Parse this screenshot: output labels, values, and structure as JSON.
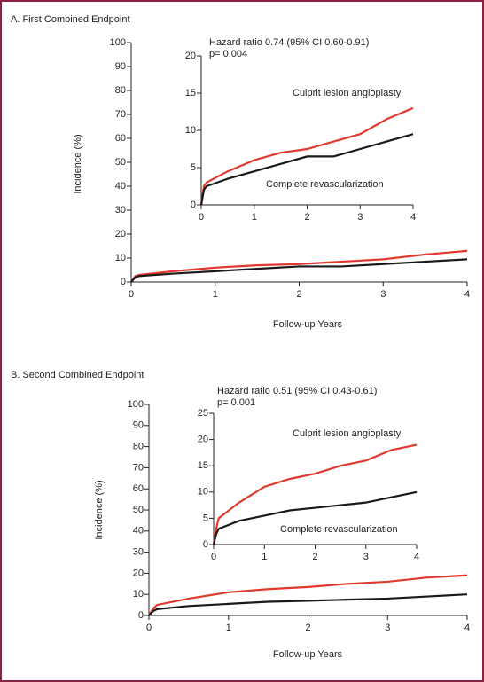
{
  "chart_data": [
    {
      "type": "line",
      "title": "A. First Combined Endpoint",
      "y_label": "Incidence (%)",
      "x_label": "Follow-up Years",
      "x": [
        0,
        0.05,
        0.1,
        0.5,
        1,
        1.5,
        2,
        2.5,
        3,
        3.5,
        4
      ],
      "series": [
        {
          "color": "#e03a2f",
          "values": [
            0,
            2.5,
            3,
            4.5,
            6,
            7,
            7.5,
            8.5,
            9.5,
            11.5,
            13
          ]
        },
        {
          "color": "#1a1a1a",
          "values": [
            0,
            2,
            2.5,
            3.5,
            4.5,
            5.5,
            6.5,
            6.5,
            7.5,
            8.5,
            9.5
          ]
        }
      ],
      "xlim": [
        0,
        4
      ],
      "xticks": [
        0,
        1,
        2,
        3,
        4
      ],
      "ylim": [
        0,
        100
      ],
      "yticks": [
        0,
        10,
        20,
        30,
        40,
        50,
        60,
        70,
        80,
        90,
        100
      ]
    },
    {
      "type": "line",
      "annotations": [
        "Hazard ratio 0.74 (95% CI 0.60-0.91)",
        "p= 0.004"
      ],
      "x": [
        0,
        0.05,
        0.1,
        0.5,
        1,
        1.5,
        2,
        2.5,
        3,
        3.5,
        4
      ],
      "series": [
        {
          "name": "Culprit lesion angioplasty",
          "color": "#e03a2f",
          "values": [
            0,
            2.5,
            3,
            4.5,
            6,
            7,
            7.5,
            8.5,
            9.5,
            11.5,
            13
          ]
        },
        {
          "name": "Complete revascularization",
          "color": "#1a1a1a",
          "values": [
            0,
            2,
            2.5,
            3.5,
            4.5,
            5.5,
            6.5,
            6.5,
            7.5,
            8.5,
            9.5
          ]
        }
      ],
      "xlim": [
        0,
        4
      ],
      "xticks": [
        0,
        1,
        2,
        3,
        4
      ],
      "ylim": [
        0,
        20
      ],
      "yticks": [
        0,
        5,
        10,
        15,
        20
      ]
    },
    {
      "type": "line",
      "title": "B. Second Combined Endpoint",
      "y_label": "Incidence (%)",
      "x_label": "Follow-up Years",
      "x": [
        0,
        0.05,
        0.1,
        0.5,
        1,
        1.5,
        2,
        2.5,
        3,
        3.5,
        4
      ],
      "series": [
        {
          "color": "#e03a2f",
          "values": [
            0,
            3,
            5,
            8,
            11,
            12.5,
            13.5,
            15,
            16,
            18,
            19
          ]
        },
        {
          "color": "#1a1a1a",
          "values": [
            0,
            2,
            3,
            4.5,
            5.5,
            6.5,
            7,
            7.5,
            8,
            9,
            10
          ]
        }
      ],
      "xlim": [
        0,
        4
      ],
      "xticks": [
        0,
        1,
        2,
        3,
        4
      ],
      "ylim": [
        0,
        100
      ],
      "yticks": [
        0,
        10,
        20,
        30,
        40,
        50,
        60,
        70,
        80,
        90,
        100
      ]
    },
    {
      "type": "line",
      "annotations": [
        "Hazard ratio 0.51 (95% CI 0.43-0.61)",
        "p= 0.001"
      ],
      "x": [
        0,
        0.05,
        0.1,
        0.5,
        1,
        1.5,
        2,
        2.5,
        3,
        3.5,
        4
      ],
      "series": [
        {
          "name": "Culprit lesion angioplasty",
          "color": "#e03a2f",
          "values": [
            0,
            3,
            5,
            8,
            11,
            12.5,
            13.5,
            15,
            16,
            18,
            19
          ]
        },
        {
          "name": "Complete revascularization",
          "color": "#1a1a1a",
          "values": [
            0,
            2,
            3,
            4.5,
            5.5,
            6.5,
            7,
            7.5,
            8,
            9,
            10
          ]
        }
      ],
      "xlim": [
        0,
        4
      ],
      "xticks": [
        0,
        1,
        2,
        3,
        4
      ],
      "ylim": [
        0,
        25
      ],
      "yticks": [
        0,
        5,
        10,
        15,
        20,
        25
      ]
    }
  ]
}
